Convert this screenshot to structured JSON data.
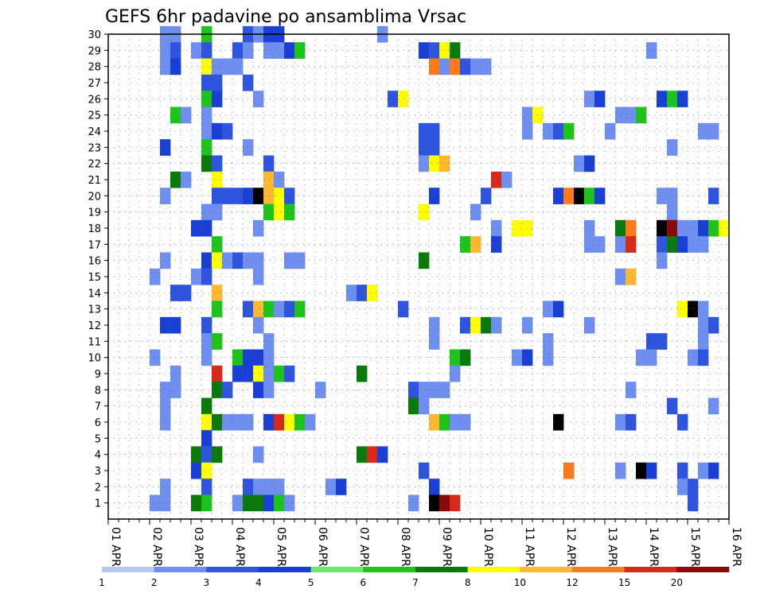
{
  "chart_data": {
    "type": "heatmap",
    "title": "GEFS 6hr padavine po ansamblima Vrsac",
    "x_axis": {
      "ticks": [
        "01 APR",
        "02 APR",
        "03 APR",
        "04 APR",
        "05 APR",
        "06 APR",
        "07 APR",
        "08 APR",
        "09 APR",
        "10 APR",
        "11 APR",
        "12 APR",
        "13 APR",
        "14 APR",
        "15 APR",
        "16 APR"
      ],
      "steps_per_day": 4,
      "step_hours": 6,
      "n_steps": 60
    },
    "y_axis": {
      "members_min": 0,
      "members_max": 30,
      "tick_labels": [
        "1",
        "2",
        "3",
        "4",
        "5",
        "6",
        "7",
        "8",
        "9",
        "10",
        "11",
        "12",
        "13",
        "14",
        "15",
        "16",
        "17",
        "18",
        "19",
        "20",
        "21",
        "22",
        "23",
        "24",
        "25",
        "26",
        "27",
        "28",
        "29",
        "30"
      ]
    },
    "grid": true,
    "colorbar": {
      "labels": [
        "1",
        "2",
        "3",
        "4",
        "5",
        "6",
        "7",
        "8",
        "10",
        "12",
        "15",
        "20"
      ],
      "colors": [
        "#b7c8f2",
        "#6e8ff0",
        "#2f55e0",
        "#1a3fd4",
        "#6ee86a",
        "#1cc41c",
        "#0a7a0a",
        "#ffff00",
        "#ffb830",
        "#ff7a1a",
        "#d82a1a",
        "#8a0a0a"
      ]
    },
    "cells": [
      [
        5,
        30,
        1
      ],
      [
        6,
        30,
        1
      ],
      [
        9,
        30,
        5
      ],
      [
        13,
        30,
        2
      ],
      [
        14,
        30,
        1
      ],
      [
        15,
        30,
        3
      ],
      [
        16,
        30,
        3
      ],
      [
        26,
        30,
        1
      ],
      [
        5,
        29,
        1
      ],
      [
        6,
        29,
        2
      ],
      [
        8,
        29,
        1
      ],
      [
        9,
        29,
        2
      ],
      [
        12,
        29,
        2
      ],
      [
        13,
        29,
        1
      ],
      [
        15,
        29,
        1
      ],
      [
        16,
        29,
        1
      ],
      [
        17,
        29,
        3
      ],
      [
        18,
        29,
        5
      ],
      [
        30,
        29,
        3
      ],
      [
        31,
        29,
        2
      ],
      [
        32,
        29,
        7
      ],
      [
        33,
        29,
        6
      ],
      [
        52,
        29,
        1
      ],
      [
        5,
        28,
        1
      ],
      [
        6,
        28,
        3
      ],
      [
        9,
        28,
        7
      ],
      [
        10,
        28,
        1
      ],
      [
        11,
        28,
        1
      ],
      [
        12,
        28,
        1
      ],
      [
        31,
        28,
        9
      ],
      [
        32,
        28,
        1
      ],
      [
        33,
        28,
        9
      ],
      [
        34,
        28,
        2
      ],
      [
        35,
        28,
        1
      ],
      [
        36,
        28,
        1
      ],
      [
        9,
        27,
        2
      ],
      [
        10,
        27,
        2
      ],
      [
        13,
        27,
        2
      ],
      [
        9,
        26,
        5
      ],
      [
        10,
        26,
        3
      ],
      [
        14,
        26,
        1
      ],
      [
        27,
        26,
        2
      ],
      [
        28,
        26,
        7
      ],
      [
        46,
        26,
        1
      ],
      [
        47,
        26,
        3
      ],
      [
        53,
        26,
        3
      ],
      [
        54,
        26,
        5
      ],
      [
        55,
        26,
        3
      ],
      [
        6,
        25,
        5
      ],
      [
        7,
        25,
        1
      ],
      [
        9,
        25,
        1
      ],
      [
        40,
        25,
        1
      ],
      [
        41,
        25,
        7
      ],
      [
        49,
        25,
        1
      ],
      [
        50,
        25,
        1
      ],
      [
        51,
        25,
        5
      ],
      [
        9,
        24,
        1
      ],
      [
        10,
        24,
        3
      ],
      [
        11,
        24,
        2
      ],
      [
        30,
        24,
        2
      ],
      [
        31,
        24,
        2
      ],
      [
        40,
        24,
        1
      ],
      [
        42,
        24,
        1
      ],
      [
        43,
        24,
        2
      ],
      [
        44,
        24,
        5
      ],
      [
        48,
        24,
        1
      ],
      [
        57,
        24,
        1
      ],
      [
        58,
        24,
        1
      ],
      [
        5,
        23,
        3
      ],
      [
        9,
        23,
        5
      ],
      [
        13,
        23,
        1
      ],
      [
        30,
        23,
        2
      ],
      [
        31,
        23,
        2
      ],
      [
        54,
        23,
        1
      ],
      [
        9,
        22,
        6
      ],
      [
        10,
        22,
        2
      ],
      [
        15,
        22,
        2
      ],
      [
        30,
        22,
        1
      ],
      [
        31,
        22,
        7
      ],
      [
        32,
        22,
        8
      ],
      [
        45,
        22,
        1
      ],
      [
        46,
        22,
        3
      ],
      [
        6,
        21,
        6
      ],
      [
        7,
        21,
        1
      ],
      [
        10,
        21,
        7
      ],
      [
        15,
        21,
        8
      ],
      [
        16,
        21,
        1
      ],
      [
        37,
        21,
        10
      ],
      [
        38,
        21,
        1
      ],
      [
        5,
        20,
        1
      ],
      [
        10,
        20,
        2
      ],
      [
        11,
        20,
        2
      ],
      [
        12,
        20,
        2
      ],
      [
        13,
        20,
        3
      ],
      [
        14,
        20,
        12
      ],
      [
        15,
        20,
        8
      ],
      [
        16,
        20,
        7
      ],
      [
        17,
        20,
        2
      ],
      [
        31,
        20,
        3
      ],
      [
        36,
        20,
        2
      ],
      [
        43,
        20,
        3
      ],
      [
        44,
        20,
        9
      ],
      [
        45,
        20,
        12
      ],
      [
        46,
        20,
        5
      ],
      [
        47,
        20,
        3
      ],
      [
        53,
        20,
        1
      ],
      [
        54,
        20,
        1
      ],
      [
        58,
        20,
        2
      ],
      [
        9,
        19,
        1
      ],
      [
        10,
        19,
        1
      ],
      [
        15,
        19,
        5
      ],
      [
        16,
        19,
        7
      ],
      [
        17,
        19,
        5
      ],
      [
        30,
        19,
        7
      ],
      [
        35,
        19,
        1
      ],
      [
        54,
        19,
        1
      ],
      [
        8,
        18,
        3
      ],
      [
        9,
        18,
        3
      ],
      [
        14,
        18,
        1
      ],
      [
        37,
        18,
        1
      ],
      [
        39,
        18,
        7
      ],
      [
        40,
        18,
        7
      ],
      [
        46,
        18,
        1
      ],
      [
        49,
        18,
        6
      ],
      [
        50,
        18,
        9
      ],
      [
        53,
        18,
        12
      ],
      [
        54,
        18,
        11
      ],
      [
        55,
        18,
        1
      ],
      [
        56,
        18,
        1
      ],
      [
        57,
        18,
        3
      ],
      [
        58,
        18,
        5
      ],
      [
        59,
        18,
        7
      ],
      [
        10,
        17,
        5
      ],
      [
        34,
        17,
        5
      ],
      [
        35,
        17,
        8
      ],
      [
        37,
        17,
        3
      ],
      [
        46,
        17,
        1
      ],
      [
        47,
        17,
        1
      ],
      [
        49,
        17,
        1
      ],
      [
        50,
        17,
        10
      ],
      [
        53,
        17,
        2
      ],
      [
        54,
        17,
        6
      ],
      [
        55,
        17,
        3
      ],
      [
        56,
        17,
        1
      ],
      [
        57,
        17,
        1
      ],
      [
        5,
        16,
        1
      ],
      [
        9,
        16,
        3
      ],
      [
        10,
        16,
        7
      ],
      [
        11,
        16,
        1
      ],
      [
        12,
        16,
        2
      ],
      [
        13,
        16,
        1
      ],
      [
        14,
        16,
        1
      ],
      [
        17,
        16,
        1
      ],
      [
        18,
        16,
        1
      ],
      [
        30,
        16,
        6
      ],
      [
        53,
        16,
        1
      ],
      [
        4,
        15,
        1
      ],
      [
        8,
        15,
        1
      ],
      [
        9,
        15,
        2
      ],
      [
        14,
        15,
        1
      ],
      [
        49,
        15,
        1
      ],
      [
        50,
        15,
        8
      ],
      [
        6,
        14,
        2
      ],
      [
        7,
        14,
        2
      ],
      [
        10,
        14,
        8
      ],
      [
        23,
        14,
        1
      ],
      [
        24,
        14,
        2
      ],
      [
        25,
        14,
        7
      ],
      [
        10,
        13,
        5
      ],
      [
        13,
        13,
        2
      ],
      [
        14,
        13,
        8
      ],
      [
        15,
        13,
        5
      ],
      [
        16,
        13,
        1
      ],
      [
        17,
        13,
        2
      ],
      [
        18,
        13,
        5
      ],
      [
        28,
        13,
        2
      ],
      [
        42,
        13,
        1
      ],
      [
        43,
        13,
        3
      ],
      [
        55,
        13,
        7
      ],
      [
        56,
        13,
        12
      ],
      [
        57,
        13,
        1
      ],
      [
        5,
        12,
        3
      ],
      [
        6,
        12,
        3
      ],
      [
        9,
        12,
        2
      ],
      [
        14,
        12,
        1
      ],
      [
        31,
        12,
        1
      ],
      [
        34,
        12,
        2
      ],
      [
        35,
        12,
        7
      ],
      [
        36,
        12,
        6
      ],
      [
        37,
        12,
        1
      ],
      [
        40,
        12,
        1
      ],
      [
        46,
        12,
        1
      ],
      [
        57,
        12,
        1
      ],
      [
        58,
        12,
        2
      ],
      [
        9,
        11,
        1
      ],
      [
        10,
        11,
        5
      ],
      [
        15,
        11,
        1
      ],
      [
        31,
        11,
        1
      ],
      [
        42,
        11,
        1
      ],
      [
        52,
        11,
        2
      ],
      [
        53,
        11,
        2
      ],
      [
        57,
        11,
        1
      ],
      [
        4,
        10,
        1
      ],
      [
        9,
        10,
        1
      ],
      [
        12,
        10,
        5
      ],
      [
        13,
        10,
        3
      ],
      [
        14,
        10,
        3
      ],
      [
        15,
        10,
        1
      ],
      [
        33,
        10,
        5
      ],
      [
        34,
        10,
        6
      ],
      [
        39,
        10,
        1
      ],
      [
        40,
        10,
        3
      ],
      [
        42,
        10,
        1
      ],
      [
        51,
        10,
        1
      ],
      [
        52,
        10,
        1
      ],
      [
        56,
        10,
        1
      ],
      [
        57,
        10,
        2
      ],
      [
        6,
        9,
        1
      ],
      [
        10,
        9,
        10
      ],
      [
        12,
        9,
        3
      ],
      [
        13,
        9,
        3
      ],
      [
        14,
        9,
        7
      ],
      [
        15,
        9,
        1
      ],
      [
        16,
        9,
        5
      ],
      [
        17,
        9,
        2
      ],
      [
        24,
        9,
        6
      ],
      [
        33,
        9,
        1
      ],
      [
        5,
        8,
        1
      ],
      [
        6,
        8,
        1
      ],
      [
        10,
        8,
        6
      ],
      [
        11,
        8,
        2
      ],
      [
        14,
        8,
        3
      ],
      [
        15,
        8,
        1
      ],
      [
        20,
        8,
        1
      ],
      [
        29,
        8,
        2
      ],
      [
        30,
        8,
        1
      ],
      [
        31,
        8,
        1
      ],
      [
        32,
        8,
        1
      ],
      [
        50,
        8,
        1
      ],
      [
        5,
        7,
        1
      ],
      [
        9,
        7,
        6
      ],
      [
        29,
        7,
        6
      ],
      [
        30,
        7,
        1
      ],
      [
        54,
        7,
        2
      ],
      [
        58,
        7,
        1
      ],
      [
        5,
        6,
        1
      ],
      [
        9,
        6,
        7
      ],
      [
        10,
        6,
        6
      ],
      [
        11,
        6,
        1
      ],
      [
        12,
        6,
        1
      ],
      [
        13,
        6,
        1
      ],
      [
        15,
        6,
        3
      ],
      [
        16,
        6,
        10
      ],
      [
        17,
        6,
        7
      ],
      [
        18,
        6,
        5
      ],
      [
        19,
        6,
        1
      ],
      [
        31,
        6,
        8
      ],
      [
        32,
        6,
        5
      ],
      [
        33,
        6,
        1
      ],
      [
        34,
        6,
        1
      ],
      [
        43,
        6,
        12
      ],
      [
        49,
        6,
        1
      ],
      [
        50,
        6,
        2
      ],
      [
        55,
        6,
        2
      ],
      [
        9,
        5,
        3
      ],
      [
        8,
        4,
        6
      ],
      [
        9,
        4,
        2
      ],
      [
        10,
        4,
        6
      ],
      [
        14,
        4,
        1
      ],
      [
        24,
        4,
        6
      ],
      [
        25,
        4,
        10
      ],
      [
        26,
        4,
        3
      ],
      [
        8,
        3,
        3
      ],
      [
        9,
        3,
        7
      ],
      [
        30,
        3,
        2
      ],
      [
        44,
        3,
        9
      ],
      [
        49,
        3,
        1
      ],
      [
        51,
        3,
        12
      ],
      [
        52,
        3,
        3
      ],
      [
        55,
        3,
        2
      ],
      [
        57,
        3,
        1
      ],
      [
        58,
        3,
        3
      ],
      [
        5,
        2,
        1
      ],
      [
        9,
        2,
        2
      ],
      [
        13,
        2,
        2
      ],
      [
        14,
        2,
        1
      ],
      [
        15,
        2,
        1
      ],
      [
        16,
        2,
        1
      ],
      [
        21,
        2,
        1
      ],
      [
        22,
        2,
        3
      ],
      [
        31,
        2,
        3
      ],
      [
        55,
        2,
        1
      ],
      [
        56,
        2,
        2
      ],
      [
        4,
        1,
        1
      ],
      [
        5,
        1,
        1
      ],
      [
        8,
        1,
        6
      ],
      [
        9,
        1,
        5
      ],
      [
        12,
        1,
        1
      ],
      [
        13,
        1,
        6
      ],
      [
        14,
        1,
        6
      ],
      [
        15,
        1,
        3
      ],
      [
        16,
        1,
        5
      ],
      [
        17,
        1,
        1
      ],
      [
        29,
        1,
        1
      ],
      [
        31,
        1,
        12
      ],
      [
        32,
        1,
        11
      ],
      [
        33,
        1,
        10
      ],
      [
        56,
        1,
        2
      ]
    ]
  }
}
